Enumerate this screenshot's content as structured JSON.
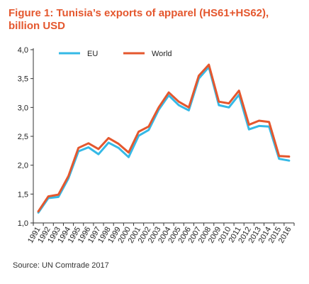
{
  "header": {
    "title_line1": "Figure 1: Tunisia’s exports of apparel (HS61+HS62),",
    "title_line2": "billion USD"
  },
  "source": "Source: UN Comtrade 2017",
  "colors": {
    "eu": "#35b9e6",
    "world": "#e4572e",
    "title": "#e4572e"
  },
  "chart_data": {
    "type": "line",
    "title": "Figure 1: Tunisia’s exports of apparel (HS61+HS62), billion USD",
    "xlabel": "",
    "ylabel": "",
    "ylim": [
      1.0,
      4.0
    ],
    "yticks": [
      "1,0",
      "1,5",
      "2,0",
      "2,5",
      "3,0",
      "3,5",
      "4,0"
    ],
    "grid": false,
    "legend": "top-left",
    "x": [
      "1991",
      "1992",
      "1993",
      "1994",
      "1995",
      "1996",
      "1997",
      "1998",
      "1999",
      "2000",
      "2001",
      "2002",
      "2003",
      "2004",
      "2005",
      "2006",
      "2007",
      "2008",
      "2009",
      "2010",
      "2011",
      "2012",
      "2013",
      "2014",
      "2015",
      "2016"
    ],
    "series": [
      {
        "name": "EU",
        "color": "#35b9e6",
        "values": [
          1.18,
          1.43,
          1.45,
          1.77,
          2.24,
          2.31,
          2.19,
          2.39,
          2.3,
          2.14,
          2.51,
          2.61,
          2.96,
          3.21,
          3.04,
          2.95,
          3.5,
          3.7,
          3.04,
          3.0,
          3.22,
          2.62,
          2.68,
          2.67,
          2.11,
          2.08
        ]
      },
      {
        "name": "World",
        "color": "#e4572e",
        "values": [
          1.2,
          1.46,
          1.49,
          1.81,
          2.3,
          2.38,
          2.28,
          2.47,
          2.37,
          2.22,
          2.58,
          2.67,
          3.0,
          3.26,
          3.1,
          3.0,
          3.55,
          3.74,
          3.1,
          3.07,
          3.29,
          2.7,
          2.77,
          2.75,
          2.16,
          2.15
        ]
      }
    ]
  }
}
